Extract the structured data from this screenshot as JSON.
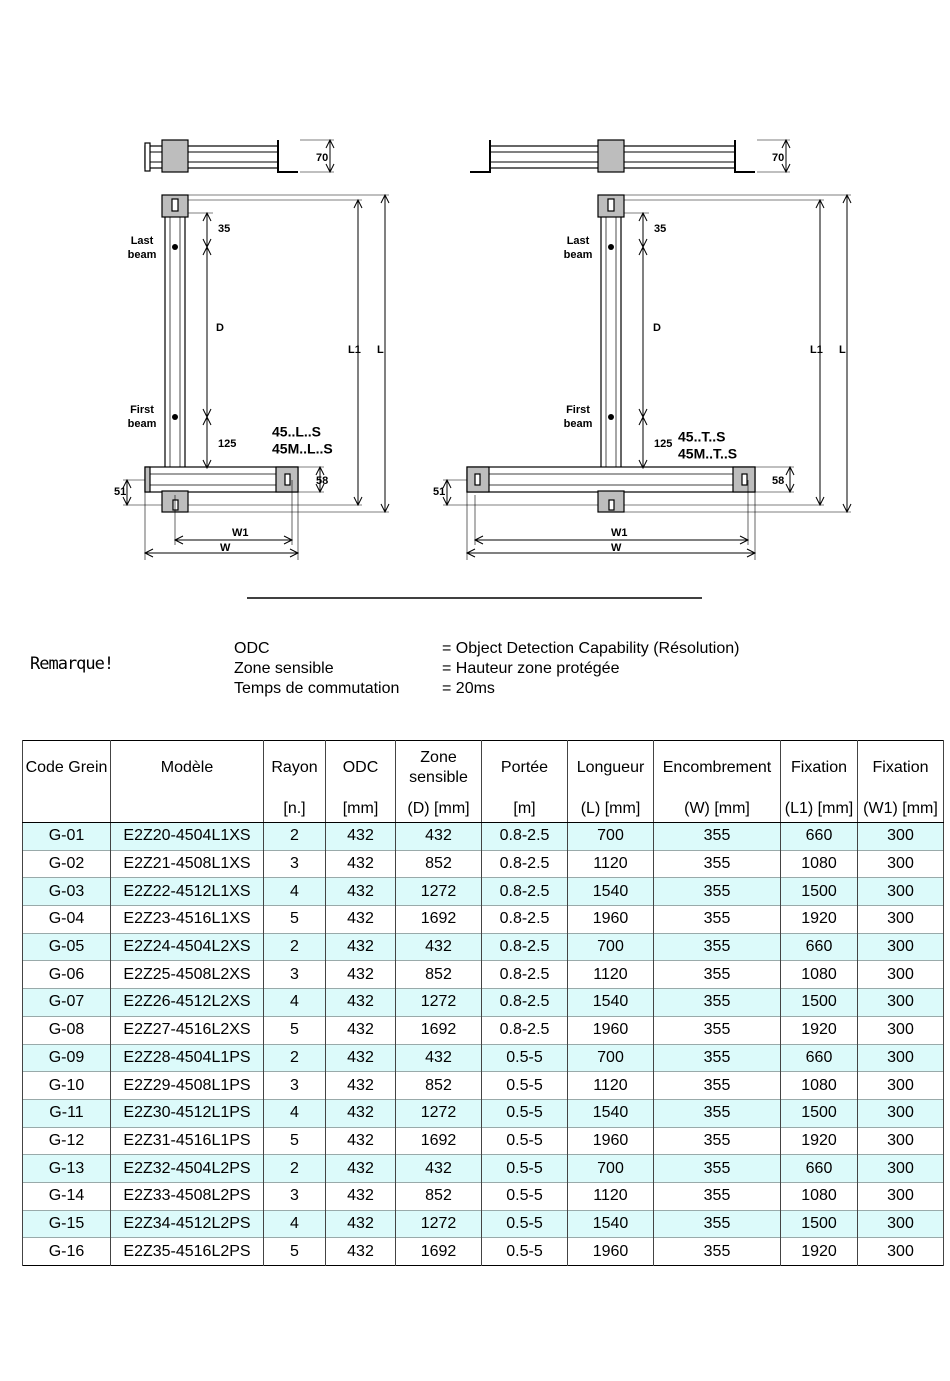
{
  "drawings": [
    {
      "top_height": 70,
      "last_beam": [
        "Last",
        "beam"
      ],
      "top_offset": 35,
      "span": "D",
      "fixing_length": "L1",
      "length": "L",
      "first_beam": [
        "First",
        "beam"
      ],
      "bottom_offset": 125,
      "models": [
        "45..L..S",
        "45M..L..S"
      ],
      "bar_offset": 51,
      "bar_height": 58,
      "fixing_width": "W1",
      "width": "W"
    },
    {
      "top_height": 70,
      "last_beam": [
        "Last",
        "beam"
      ],
      "top_offset": 35,
      "span": "D",
      "fixing_length": "L1",
      "length": "L",
      "first_beam": [
        "First",
        "beam"
      ],
      "bottom_offset": 125,
      "models": [
        "45..T..S",
        "45M..T..S"
      ],
      "bar_offset": 51,
      "bar_height": 58,
      "fixing_width": "W1",
      "width": "W"
    }
  ],
  "remark": {
    "title": "Remarque!",
    "rows": [
      [
        "ODC",
        "= Object Detection Capability (Résolution)"
      ],
      [
        "Zone sensible",
        "= Hauteur zone protégée"
      ],
      [
        "Temps de commutation",
        "= 20ms"
      ]
    ]
  },
  "table": {
    "header": [
      {
        "label": "Code Grein"
      },
      {
        "label": "Modèle"
      },
      {
        "label": "Rayon",
        "unit": "[n.]"
      },
      {
        "label": "ODC",
        "unit": "[mm]"
      },
      {
        "label": "Zone sensible",
        "unit": "(D) [mm]"
      },
      {
        "label": "Portée",
        "unit": "[m]"
      },
      {
        "label": "Longueur",
        "unit": "(L) [mm]"
      },
      {
        "label": "Encombrement",
        "unit": "(W) [mm]"
      },
      {
        "label": "Fixation",
        "unit": "(L1) [mm]"
      },
      {
        "label": "Fixation",
        "unit": "(W1) [mm]"
      }
    ],
    "rows": [
      [
        "G-01",
        "E2Z20-4504L1XS",
        2,
        432,
        432,
        "0.8-2.5",
        700,
        355,
        660,
        300
      ],
      [
        "G-02",
        "E2Z21-4508L1XS",
        3,
        432,
        852,
        "0.8-2.5",
        1120,
        355,
        1080,
        300
      ],
      [
        "G-03",
        "E2Z22-4512L1XS",
        4,
        432,
        1272,
        "0.8-2.5",
        1540,
        355,
        1500,
        300
      ],
      [
        "G-04",
        "E2Z23-4516L1XS",
        5,
        432,
        1692,
        "0.8-2.5",
        1960,
        355,
        1920,
        300
      ],
      [
        "G-05",
        "E2Z24-4504L2XS",
        2,
        432,
        432,
        "0.8-2.5",
        700,
        355,
        660,
        300
      ],
      [
        "G-06",
        "E2Z25-4508L2XS",
        3,
        432,
        852,
        "0.8-2.5",
        1120,
        355,
        1080,
        300
      ],
      [
        "G-07",
        "E2Z26-4512L2XS",
        4,
        432,
        1272,
        "0.8-2.5",
        1540,
        355,
        1500,
        300
      ],
      [
        "G-08",
        "E2Z27-4516L2XS",
        5,
        432,
        1692,
        "0.8-2.5",
        1960,
        355,
        1920,
        300
      ],
      [
        "G-09",
        "E2Z28-4504L1PS",
        2,
        432,
        432,
        "0.5-5",
        700,
        355,
        660,
        300
      ],
      [
        "G-10",
        "E2Z29-4508L1PS",
        3,
        432,
        852,
        "0.5-5",
        1120,
        355,
        1080,
        300
      ],
      [
        "G-11",
        "E2Z30-4512L1PS",
        4,
        432,
        1272,
        "0.5-5",
        1540,
        355,
        1500,
        300
      ],
      [
        "G-12",
        "E2Z31-4516L1PS",
        5,
        432,
        1692,
        "0.5-5",
        1960,
        355,
        1920,
        300
      ],
      [
        "G-13",
        "E2Z32-4504L2PS",
        2,
        432,
        432,
        "0.5-5",
        700,
        355,
        660,
        300
      ],
      [
        "G-14",
        "E2Z33-4508L2PS",
        3,
        432,
        852,
        "0.5-5",
        1120,
        355,
        1080,
        300
      ],
      [
        "G-15",
        "E2Z34-4512L2PS",
        4,
        432,
        1272,
        "0.5-5",
        1540,
        355,
        1500,
        300
      ],
      [
        "G-16",
        "E2Z35-4516L2PS",
        5,
        432,
        1692,
        "0.5-5",
        1960,
        355,
        1920,
        300
      ]
    ]
  }
}
